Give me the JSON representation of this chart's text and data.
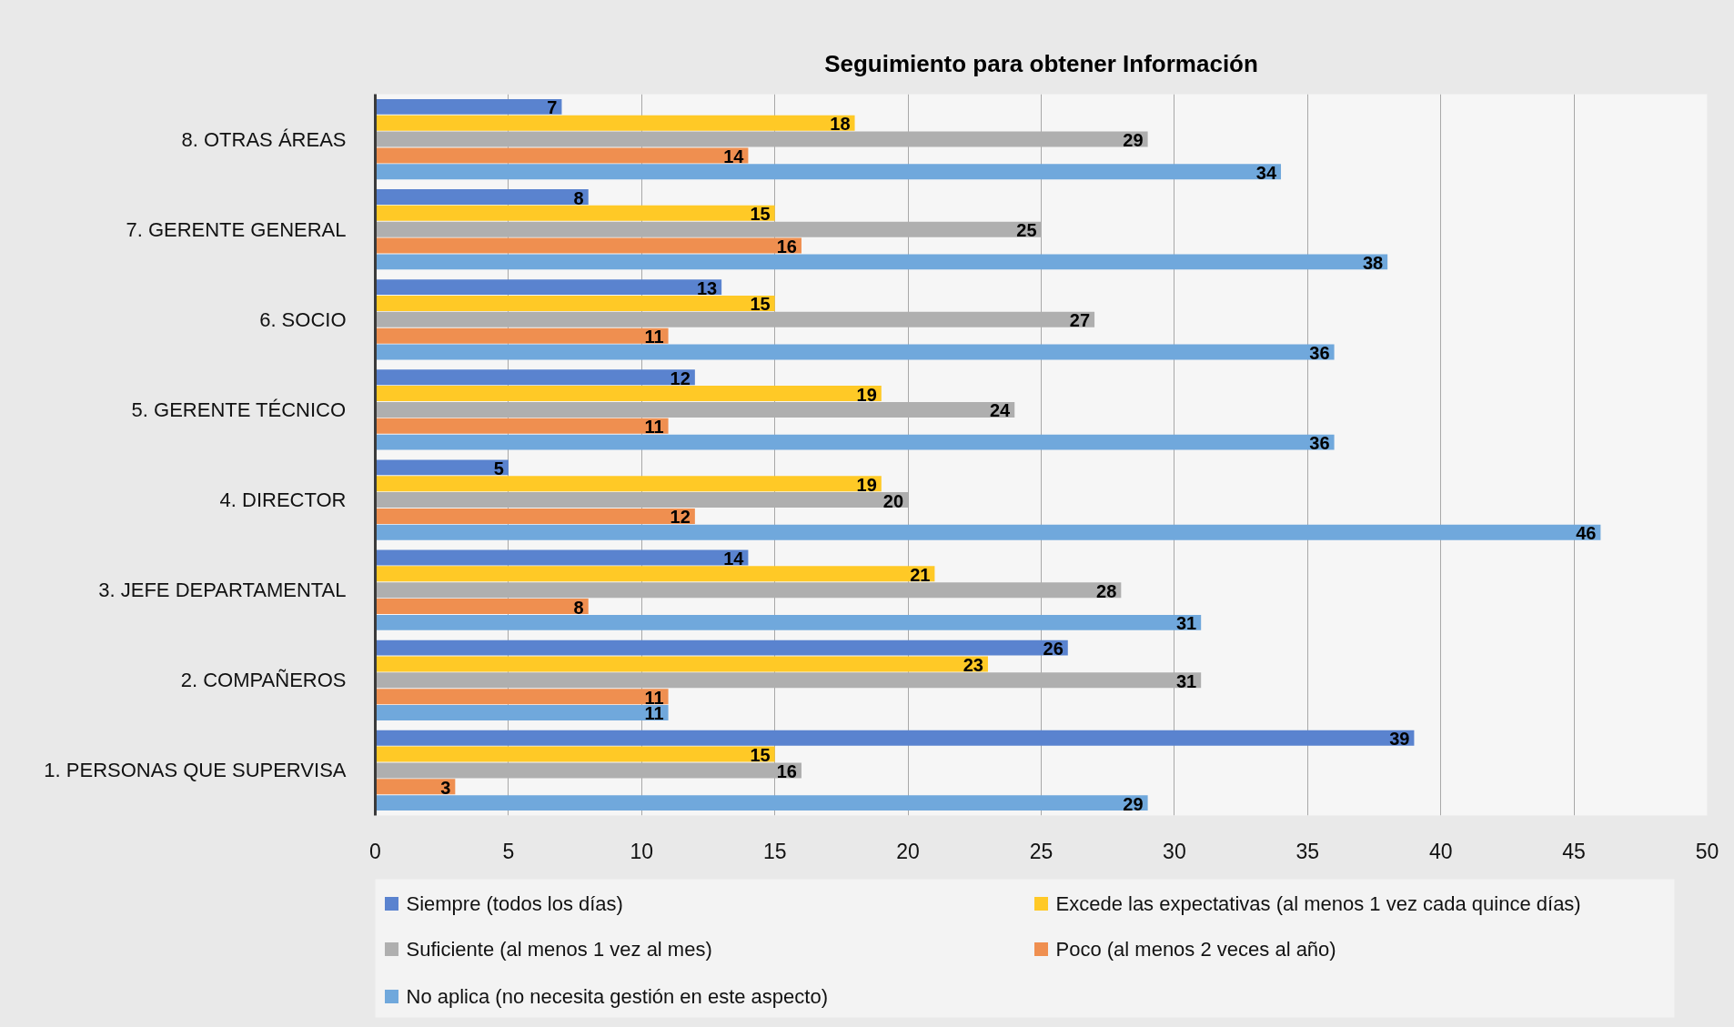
{
  "chart_data": {
    "type": "bar",
    "orientation": "horizontal",
    "title": "Seguimiento para obtener Información",
    "categories": [
      "8. OTRAS ÁREAS",
      "7. GERENTE GENERAL",
      "6. SOCIO",
      "5. GERENTE TÉCNICO",
      "4. DIRECTOR",
      "3. JEFE DEPARTAMENTAL",
      "2. COMPAÑEROS",
      "1. PERSONAS QUE SUPERVISA"
    ],
    "series": [
      {
        "name": "Siempre (todos los días)",
        "color": "#5a83cf",
        "values": [
          7,
          8,
          13,
          12,
          5,
          14,
          26,
          39
        ]
      },
      {
        "name": "Excede las expectativas (al menos 1 vez cada quince días)",
        "color": "#ffc926",
        "values": [
          18,
          15,
          15,
          19,
          19,
          21,
          23,
          15
        ]
      },
      {
        "name": "Suficiente (al menos 1 vez al mes)",
        "color": "#afafaf",
        "values": [
          29,
          25,
          27,
          24,
          20,
          28,
          31,
          16
        ]
      },
      {
        "name": "Poco (al menos 2 veces al año)",
        "color": "#ef8f50",
        "values": [
          14,
          16,
          11,
          11,
          12,
          8,
          11,
          3
        ]
      },
      {
        "name": "No aplica (no necesita gestión en este aspecto)",
        "color": "#70a8dc",
        "values": [
          34,
          38,
          36,
          36,
          46,
          31,
          11,
          29
        ]
      }
    ],
    "xlim": [
      0,
      50
    ],
    "xticks": [
      0,
      5,
      10,
      15,
      20,
      25,
      30,
      35,
      40,
      45,
      50
    ],
    "grid": "x",
    "legend": "bottom",
    "data_labels": true
  }
}
